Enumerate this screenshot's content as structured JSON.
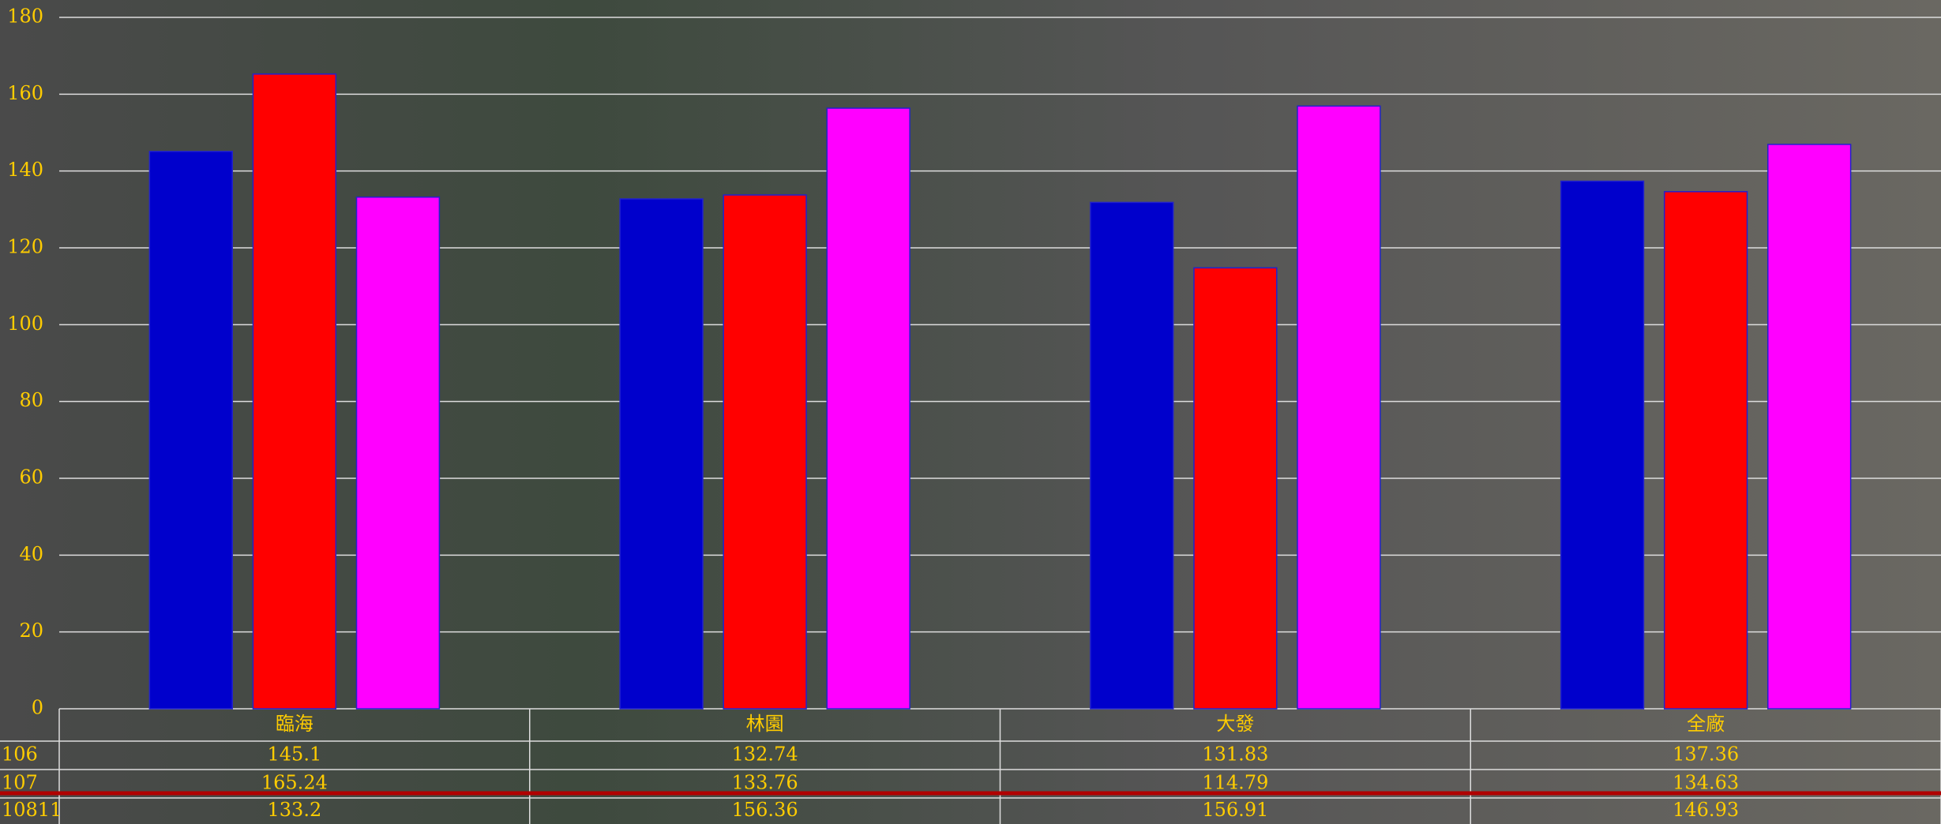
{
  "chart_data": {
    "type": "bar",
    "categories": [
      "臨海",
      "林園",
      "大發",
      "全廠"
    ],
    "series": [
      {
        "name": "106",
        "color": "#0000cc",
        "values": [
          145.1,
          132.74,
          131.83,
          137.36
        ]
      },
      {
        "name": "107",
        "color": "#ff0000",
        "values": [
          165.24,
          133.76,
          114.79,
          134.63
        ]
      },
      {
        "name": "10811",
        "color": "#ff00ff",
        "values": [
          133.2,
          156.36,
          156.91,
          146.93
        ]
      }
    ],
    "ylim": [
      0,
      180
    ],
    "yticks": [
      0,
      20,
      40,
      60,
      80,
      100,
      120,
      140,
      160,
      180
    ],
    "grid": true
  }
}
